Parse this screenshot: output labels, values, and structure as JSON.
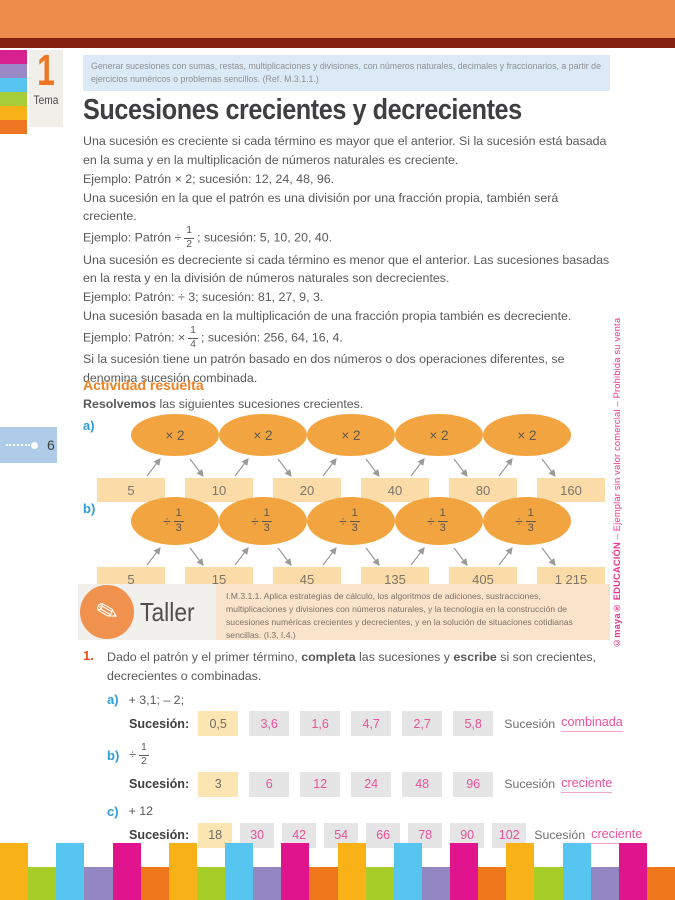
{
  "header": {
    "band_color": "#EE8C4B",
    "bar_color": "#84200E",
    "tema_number": "1",
    "tema_label": "Tema",
    "tab_colors": [
      "#D6218F",
      "#9A87C6",
      "#56C4EF",
      "#A6CE39",
      "#F8B119",
      "#EE7623"
    ],
    "standard_text": "Generar sucesiones con sumas, restas, multiplicaciones y divisiones, con números naturales, decimales y fraccionarios, a partir de ejercicios numéricos o problemas sencillos. (Ref. M.3.1.1.)",
    "title": "Sucesiones crecientes y decrecientes"
  },
  "intro": {
    "p1": "Una sucesión es creciente si cada término es mayor que el anterior. Si la sucesión está basada en la suma y en la multiplicación de números naturales es creciente.",
    "p2": "Ejemplo: Patrón × 2; sucesión: 12, 24, 48, 96.",
    "p3": "Una sucesión en la que el patrón es una división por una fracción propia, también será creciente.",
    "p4_pre": "Ejemplo: Patrón ÷",
    "p4_frac": {
      "num": "1",
      "den": "2"
    },
    "p4_post": "; sucesión: 5, 10, 20, 40.",
    "p5": "Una sucesión es decreciente si cada término es menor que el anterior. Las sucesiones basadas en la resta y en la división de números naturales son decrecientes.",
    "p6": "Ejemplo: Patrón: ÷ 3; sucesión: 81, 27, 9, 3.",
    "p7_pre": "Una sucesión basada en la multiplicación de una fracción propia también es decreciente. Ejemplo: Patrón: ×",
    "p7_frac": {
      "num": "1",
      "den": "4"
    },
    "p7_post": "; sucesión: 256, 64, 16, 4.",
    "p8": "Si la sucesión tiene un patrón basado en dos números o dos operaciones diferentes, se denomina sucesión combinada."
  },
  "activity": {
    "heading": "Actividad resuelta",
    "intro_bold": "Resolvemos",
    "intro_rest": " las siguientes sucesiones crecientes.",
    "a": {
      "label": "a)",
      "oval_op": "× 2",
      "boxes": [
        "5",
        "10",
        "20",
        "40",
        "80",
        "160"
      ]
    },
    "b": {
      "label": "b)",
      "oval_op": "÷",
      "oval_frac": {
        "num": "1",
        "den": "3"
      },
      "boxes": [
        "5",
        "15",
        "45",
        "135",
        "405",
        "1 215"
      ]
    }
  },
  "taller": {
    "label": "Taller",
    "text": "I.M.3.1.1. Aplica estrategias de cálculo, los algoritmos de adiciones, sustracciones, multiplicaciones y divisiones con números naturales, y la tecnología en la construcción de sucesiones numéricas crecientes y decrecientes, y en la solución de situaciones cotidianas sencillas. (I.3, I.4.)"
  },
  "exercise": {
    "number": "1.",
    "text_pre": "Dado el patrón y el primer término, ",
    "bold1": "completa",
    "text_mid": " las sucesiones y ",
    "bold2": "escribe",
    "text_post": " si son crecientes, decrecientes o combinadas.",
    "sucesion_label": "Sucesión:",
    "sucesion_word": "Sucesión",
    "items": [
      {
        "label": "a)",
        "pattern": "+ 3,1; – 2;",
        "first": "0,5",
        "answers": [
          "3,6",
          "1,6",
          "4,7",
          "2,7",
          "5,8"
        ],
        "result": "combinada"
      },
      {
        "label": "b)",
        "pattern_op": "÷",
        "pattern_frac": {
          "num": "1",
          "den": "2"
        },
        "first": "3",
        "answers": [
          "6",
          "12",
          "24",
          "48",
          "96"
        ],
        "result": "creciente"
      },
      {
        "label": "c)",
        "pattern": "+ 12",
        "first": "18",
        "answers": [
          "30",
          "42",
          "54",
          "66",
          "78",
          "90",
          "102"
        ],
        "result": "creciente"
      }
    ]
  },
  "page": {
    "number": "6"
  },
  "sidebar": {
    "brand": "©maya® EDUCACIÓN",
    "rest": " – Ejemplar sin valor comercial – Prohibida su venta"
  },
  "footer": {
    "repeats": 4,
    "cycle": [
      {
        "color": "#F8B117",
        "size": "tall"
      },
      {
        "color": "#A6CE26",
        "size": "short"
      },
      {
        "color": "#56C6F0",
        "size": "tall"
      },
      {
        "color": "#9287C2",
        "size": "short"
      },
      {
        "color": "#E0148C",
        "size": "tall"
      },
      {
        "color": "#F0761B",
        "size": "short"
      }
    ]
  }
}
